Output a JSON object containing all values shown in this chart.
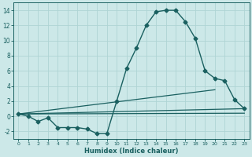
{
  "xlabel": "Humidex (Indice chaleur)",
  "ylabel": "",
  "bg_color": "#cce8e8",
  "grid_color": "#afd4d4",
  "line_color": "#1a6060",
  "xlim": [
    -0.5,
    23.5
  ],
  "ylim": [
    -3,
    15
  ],
  "xticks": [
    0,
    1,
    2,
    3,
    4,
    5,
    6,
    7,
    8,
    9,
    10,
    11,
    12,
    13,
    14,
    15,
    16,
    17,
    18,
    19,
    20,
    21,
    22,
    23
  ],
  "yticks": [
    -2,
    0,
    2,
    4,
    6,
    8,
    10,
    12,
    14
  ],
  "series": [
    {
      "x": [
        0,
        1,
        2,
        3,
        4,
        5,
        6,
        7,
        8,
        9,
        10,
        11,
        12,
        13,
        14,
        15,
        16,
        17,
        18,
        19,
        20,
        21,
        22,
        23
      ],
      "y": [
        0.3,
        0.0,
        -0.7,
        -0.2,
        -1.5,
        -1.5,
        -1.5,
        -1.7,
        -2.3,
        -2.3,
        2.0,
        6.3,
        9.0,
        12.0,
        13.8,
        14.0,
        14.0,
        12.5,
        10.3,
        6.0,
        5.0,
        4.7,
        2.2,
        1.0
      ],
      "marker": "D",
      "markersize": 2.5,
      "linewidth": 1.0
    },
    {
      "x": [
        0,
        23
      ],
      "y": [
        0.3,
        1.0
      ],
      "linewidth": 0.9
    },
    {
      "x": [
        0,
        20
      ],
      "y": [
        0.3,
        3.5
      ],
      "linewidth": 0.9
    },
    {
      "x": [
        0,
        23
      ],
      "y": [
        0.3,
        0.4
      ],
      "linewidth": 0.9
    }
  ]
}
